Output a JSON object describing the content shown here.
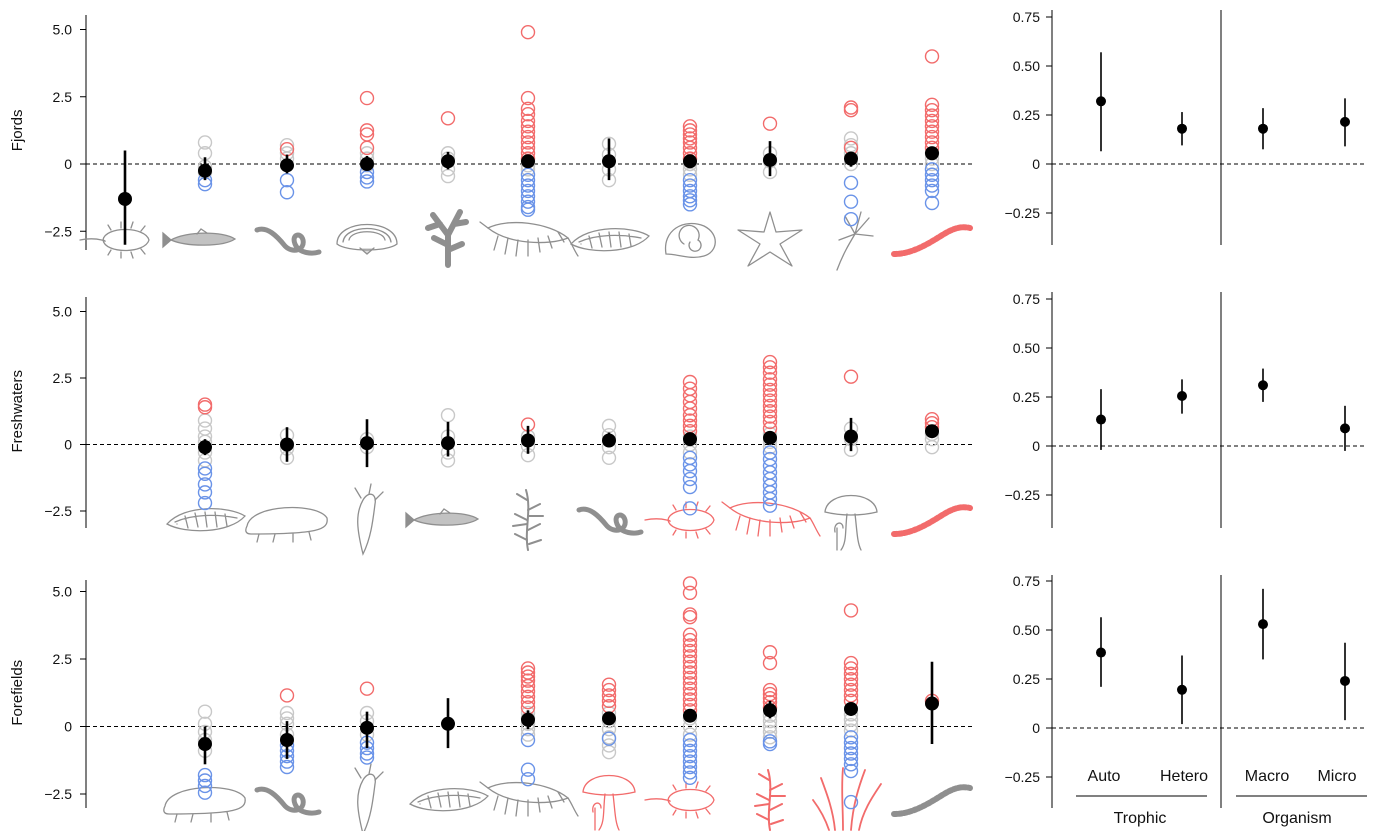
{
  "colors": {
    "increase": "#f26b6b",
    "decrease": "#6a93e8",
    "neutral": "#c8c8c8",
    "mean": "#000000",
    "silhouette_gray": "#8f8f8f",
    "silhouette_red": "#f26b6b"
  },
  "chart_data": [
    {
      "type": "scatter",
      "panel": "left",
      "ylabel": "Fjords",
      "ylim": [
        -3.0,
        5.4
      ],
      "yticks": [
        -2.5,
        0,
        2.5,
        5.0
      ],
      "ytick_labels": [
        "−2.5",
        "0",
        "2.5",
        "5.0"
      ],
      "reference_line": 0,
      "groups": [
        {
          "mean": -1.3,
          "low": -3.0,
          "high": 0.5,
          "red": [],
          "gray": [],
          "blue": [],
          "icon": "protist-icon",
          "icon_color": "gray"
        },
        {
          "mean": -0.25,
          "low": -0.6,
          "high": 0.25,
          "red": [],
          "gray": [
            0.8,
            0.4,
            -0.1,
            -0.3
          ],
          "blue": [
            -0.6,
            -0.75
          ],
          "icon": "fish-icon",
          "icon_color": "gray"
        },
        {
          "mean": -0.05,
          "low": -0.35,
          "high": 0.35,
          "red": [
            0.55
          ],
          "gray": [
            0.7,
            0.4,
            0.2
          ],
          "blue": [
            -0.6,
            -1.05
          ],
          "icon": "worm-icon",
          "icon_color": "gray"
        },
        {
          "mean": 0.0,
          "low": -0.25,
          "high": 0.3,
          "red": [
            2.45,
            1.25,
            1.1,
            0.6
          ],
          "gray": [
            0.4,
            0.2,
            -0.05
          ],
          "blue": [
            -0.3,
            -0.5,
            -0.65
          ],
          "icon": "clam-icon",
          "icon_color": "gray"
        },
        {
          "mean": 0.1,
          "low": -0.2,
          "high": 0.45,
          "red": [
            1.7
          ],
          "gray": [
            0.4,
            0.2,
            -0.2,
            -0.45
          ],
          "blue": [],
          "icon": "coral-icon",
          "icon_color": "gray"
        },
        {
          "mean": 0.1,
          "low": -0.15,
          "high": 0.35,
          "red": [
            4.9,
            2.45,
            2.05,
            1.85,
            1.6,
            1.4,
            1.2,
            1.0,
            0.8,
            0.6,
            0.4,
            0.2
          ],
          "gray": [
            0.1,
            -0.05,
            -0.2
          ],
          "blue": [
            -0.4,
            -0.6,
            -0.8,
            -1.0,
            -1.2,
            -1.4,
            -1.6,
            -1.7
          ],
          "icon": "shrimp-icon",
          "icon_color": "gray"
        },
        {
          "mean": 0.1,
          "low": -0.6,
          "high": 0.95,
          "red": [],
          "gray": [
            0.75,
            0.35,
            -0.2,
            -0.6
          ],
          "blue": [],
          "icon": "diatom-icon",
          "icon_color": "gray"
        },
        {
          "mean": 0.1,
          "low": -0.1,
          "high": 0.3,
          "red": [
            1.4,
            1.25,
            1.1,
            0.95,
            0.8,
            0.6,
            0.4,
            0.2
          ],
          "gray": [
            0.0,
            -0.2,
            -0.4
          ],
          "blue": [
            -0.6,
            -0.8,
            -1.0,
            -1.2,
            -1.35,
            -1.5
          ],
          "icon": "snail-icon",
          "icon_color": "gray"
        },
        {
          "mean": 0.15,
          "low": -0.45,
          "high": 0.85,
          "red": [
            1.5
          ],
          "gray": [
            0.4,
            0.1,
            -0.3
          ],
          "blue": [],
          "icon": "starfish-icon",
          "icon_color": "gray"
        },
        {
          "mean": 0.2,
          "low": -0.1,
          "high": 0.45,
          "red": [
            2.1,
            2.0,
            0.6
          ],
          "gray": [
            0.95,
            0.7,
            0.4,
            0.0
          ],
          "blue": [
            -0.7,
            -1.4,
            -2.05
          ],
          "icon": "hydrozoan-icon",
          "icon_color": "gray"
        },
        {
          "mean": 0.4,
          "low": 0.2,
          "high": 0.6,
          "red": [
            4.0,
            2.2,
            2.0,
            1.8,
            1.6,
            1.4,
            1.2,
            1.0,
            0.8,
            0.6
          ],
          "gray": [
            0.4,
            0.2,
            0.0
          ],
          "blue": [
            -0.2,
            -0.4,
            -0.6,
            -0.8,
            -1.0,
            -1.45
          ],
          "icon": "earthworm-icon",
          "icon_color": "red"
        }
      ]
    },
    {
      "type": "scatter",
      "panel": "left",
      "ylabel": "Freshwaters",
      "ylim": [
        -3.0,
        5.4
      ],
      "yticks": [
        -2.5,
        0,
        2.5,
        5.0
      ],
      "ytick_labels": [
        "−2.5",
        "0",
        "2.5",
        "5.0"
      ],
      "reference_line": 0,
      "groups": [
        {
          "mean": -0.1,
          "low": -0.4,
          "high": 0.2,
          "red": [
            1.5,
            1.4
          ],
          "gray": [
            0.9,
            0.6,
            0.3,
            0.1,
            -0.3,
            -0.6
          ],
          "blue": [
            -0.9,
            -1.1,
            -1.5,
            -1.8,
            -2.2
          ],
          "icon": "diatom-icon",
          "icon_color": "gray"
        },
        {
          "mean": 0.0,
          "low": -0.65,
          "high": 0.65,
          "red": [],
          "gray": [
            0.35,
            -0.15,
            -0.5
          ],
          "blue": [],
          "icon": "tardigrade-icon",
          "icon_color": "gray"
        },
        {
          "mean": 0.05,
          "low": -0.85,
          "high": 0.95,
          "red": [],
          "gray": [
            0.2,
            -0.1
          ],
          "blue": [],
          "icon": "rotifer-icon",
          "icon_color": "gray"
        },
        {
          "mean": 0.05,
          "low": -0.45,
          "high": 0.85,
          "red": [],
          "gray": [
            1.1,
            0.3,
            -0.3,
            -0.6
          ],
          "blue": [],
          "icon": "fish-icon",
          "icon_color": "gray"
        },
        {
          "mean": 0.15,
          "low": -0.35,
          "high": 0.7,
          "red": [
            0.75
          ],
          "gray": [
            0.3,
            -0.05,
            -0.4
          ],
          "blue": [],
          "icon": "moss-icon",
          "icon_color": "gray"
        },
        {
          "mean": 0.15,
          "low": -0.1,
          "high": 0.45,
          "red": [],
          "gray": [
            0.7,
            0.35,
            -0.1,
            -0.5
          ],
          "blue": [],
          "icon": "worm-icon",
          "icon_color": "gray"
        },
        {
          "mean": 0.2,
          "low": 0.0,
          "high": 0.45,
          "red": [
            2.35,
            2.1,
            1.85,
            1.6,
            1.35,
            1.1,
            0.9,
            0.7,
            0.5
          ],
          "gray": [
            0.3,
            0.0,
            -0.3
          ],
          "blue": [
            -0.5,
            -0.75,
            -1.0,
            -1.3,
            -1.6,
            -2.4
          ],
          "icon": "protist-icon",
          "icon_color": "red"
        },
        {
          "mean": 0.25,
          "low": 0.1,
          "high": 0.4,
          "red": [
            3.1,
            2.9,
            2.7,
            2.45,
            2.25,
            2.05,
            1.85,
            1.65,
            1.45,
            1.25,
            1.05,
            0.85,
            0.6
          ],
          "gray": [
            0.4,
            0.1,
            -0.1
          ],
          "blue": [
            -0.3,
            -0.55,
            -0.8,
            -1.05,
            -1.3,
            -1.55,
            -1.8,
            -2.05,
            -2.3
          ],
          "icon": "shrimp-icon",
          "icon_color": "red"
        },
        {
          "mean": 0.3,
          "low": -0.25,
          "high": 1.0,
          "red": [
            2.55
          ],
          "gray": [
            0.6,
            0.2,
            -0.2
          ],
          "blue": [],
          "icon": "mushroom-icon",
          "icon_color": "gray"
        },
        {
          "mean": 0.5,
          "low": 0.35,
          "high": 0.7,
          "red": [
            0.95,
            0.8,
            0.65
          ],
          "gray": [
            0.4,
            0.2,
            -0.1
          ],
          "blue": [],
          "icon": "earthworm-icon",
          "icon_color": "red"
        }
      ]
    },
    {
      "type": "scatter",
      "panel": "left",
      "ylabel": "Forefields",
      "ylim": [
        -3.0,
        5.4
      ],
      "yticks": [
        -2.5,
        0,
        2.5,
        5.0
      ],
      "ytick_labels": [
        "−2.5",
        "0",
        "2.5",
        "5.0"
      ],
      "reference_line": 0,
      "groups": [
        {
          "mean": -0.65,
          "low": -1.4,
          "high": 0.0,
          "red": [],
          "gray": [
            0.55,
            0.1,
            -0.2,
            -0.5,
            -0.9
          ],
          "blue": [
            -1.8,
            -2.0,
            -2.2,
            -2.45
          ],
          "icon": "tardigrade-icon",
          "icon_color": "gray"
        },
        {
          "mean": -0.5,
          "low": -1.2,
          "high": 0.2,
          "red": [
            1.15
          ],
          "gray": [
            0.5,
            0.3,
            0.1,
            -0.3
          ],
          "blue": [
            -0.7,
            -0.9,
            -1.1,
            -1.3,
            -1.5
          ],
          "icon": "worm-icon",
          "icon_color": "gray"
        },
        {
          "mean": -0.05,
          "low": -0.8,
          "high": 0.55,
          "red": [
            1.4
          ],
          "gray": [
            0.5,
            0.2,
            -0.3
          ],
          "blue": [
            -0.6,
            -0.8,
            -1.0,
            -1.15
          ],
          "icon": "rotifer-icon",
          "icon_color": "gray"
        },
        {
          "mean": 0.1,
          "low": -0.8,
          "high": 1.05,
          "red": [],
          "gray": [],
          "blue": [],
          "icon": "diatom-icon",
          "icon_color": "gray"
        },
        {
          "mean": 0.25,
          "low": -0.1,
          "high": 0.6,
          "red": [
            2.15,
            2.0,
            1.85,
            1.7,
            1.5,
            1.3,
            1.1,
            0.9,
            0.7
          ],
          "gray": [
            0.5,
            0.3,
            0.1,
            -0.1,
            -0.3
          ],
          "blue": [
            -0.5,
            -1.6,
            -1.95
          ],
          "icon": "shrimp-icon",
          "icon_color": "gray"
        },
        {
          "mean": 0.3,
          "low": 0.1,
          "high": 0.5,
          "red": [
            1.55,
            1.35,
            1.15,
            0.95,
            0.75
          ],
          "gray": [
            0.5,
            0.2,
            -0.1,
            -0.4,
            -0.7,
            -0.95
          ],
          "blue": [
            -0.45
          ],
          "icon": "mushroom-icon",
          "icon_color": "red"
        },
        {
          "mean": 0.4,
          "low": 0.2,
          "high": 0.6,
          "red": [
            5.3,
            4.95,
            4.15,
            4.05,
            3.4,
            3.2,
            3.0,
            2.8,
            2.6,
            2.4,
            2.2,
            2.0,
            1.8,
            1.6,
            1.4,
            1.2,
            1.0,
            0.8,
            0.6
          ],
          "gray": [
            0.3,
            0.0,
            -0.3
          ],
          "blue": [
            -0.5,
            -0.7,
            -0.9,
            -1.1,
            -1.3,
            -1.5,
            -1.7,
            -1.9
          ],
          "icon": "protist-icon",
          "icon_color": "red"
        },
        {
          "mean": 0.6,
          "low": 0.3,
          "high": 0.95,
          "red": [
            2.75,
            2.35,
            1.35,
            1.2,
            1.05,
            0.9,
            0.7
          ],
          "gray": [
            0.4,
            0.2,
            0.0,
            -0.2,
            -0.4
          ],
          "blue": [
            -0.55,
            -0.65
          ],
          "icon": "moss-icon",
          "icon_color": "red"
        },
        {
          "mean": 0.65,
          "low": 0.4,
          "high": 0.85,
          "red": [
            4.3,
            2.35,
            2.15,
            1.95,
            1.75,
            1.55,
            1.35,
            1.15,
            0.95
          ],
          "gray": [
            0.45,
            0.25,
            0.05,
            -0.15
          ],
          "blue": [
            -0.4,
            -0.6,
            -0.8,
            -1.0,
            -1.2,
            -1.4,
            -1.65,
            -2.8
          ],
          "icon": "grass-icon",
          "icon_color": "red"
        },
        {
          "mean": 0.85,
          "low": -0.65,
          "high": 2.4,
          "red": [
            0.95
          ],
          "gray": [],
          "blue": [],
          "icon": "earthworm-icon",
          "icon_color": "gray"
        }
      ]
    },
    {
      "type": "errorbar",
      "panel": "right",
      "ylim": [
        -0.42,
        0.76
      ],
      "yticks": [
        -0.25,
        0,
        0.25,
        0.5,
        0.75
      ],
      "ytick_labels": [
        "−0.25",
        "0",
        "0.25",
        "0.50",
        "0.75"
      ],
      "reference_line": 0,
      "points": [
        {
          "mean": 0.32,
          "low": 0.065,
          "high": 0.57
        },
        {
          "mean": 0.18,
          "low": 0.095,
          "high": 0.265
        },
        {
          "mean": 0.18,
          "low": 0.075,
          "high": 0.285
        },
        {
          "mean": 0.215,
          "low": 0.09,
          "high": 0.335
        }
      ]
    },
    {
      "type": "errorbar",
      "panel": "right",
      "ylim": [
        -0.42,
        0.76
      ],
      "yticks": [
        -0.25,
        0,
        0.25,
        0.5,
        0.75
      ],
      "ytick_labels": [
        "−0.25",
        "0",
        "0.25",
        "0.50",
        "0.75"
      ],
      "reference_line": 0,
      "points": [
        {
          "mean": 0.135,
          "low": -0.02,
          "high": 0.29
        },
        {
          "mean": 0.255,
          "low": 0.165,
          "high": 0.34
        },
        {
          "mean": 0.31,
          "low": 0.225,
          "high": 0.395
        },
        {
          "mean": 0.09,
          "low": -0.025,
          "high": 0.205
        }
      ]
    },
    {
      "type": "errorbar",
      "panel": "right",
      "ylim": [
        -0.42,
        0.76
      ],
      "yticks": [
        -0.25,
        0,
        0.25,
        0.5,
        0.75
      ],
      "ytick_labels": [
        "−0.25",
        "0",
        "0.25",
        "0.50",
        "0.75"
      ],
      "reference_line": 0,
      "points": [
        {
          "mean": 0.385,
          "low": 0.21,
          "high": 0.565
        },
        {
          "mean": 0.195,
          "low": 0.02,
          "high": 0.37
        },
        {
          "mean": 0.53,
          "low": 0.35,
          "high": 0.71
        },
        {
          "mean": 0.24,
          "low": 0.04,
          "high": 0.435
        }
      ],
      "categories": [
        "Auto",
        "Hetero",
        "Macro",
        "Micro"
      ],
      "groups": [
        "Trophic",
        "Organism"
      ]
    }
  ]
}
